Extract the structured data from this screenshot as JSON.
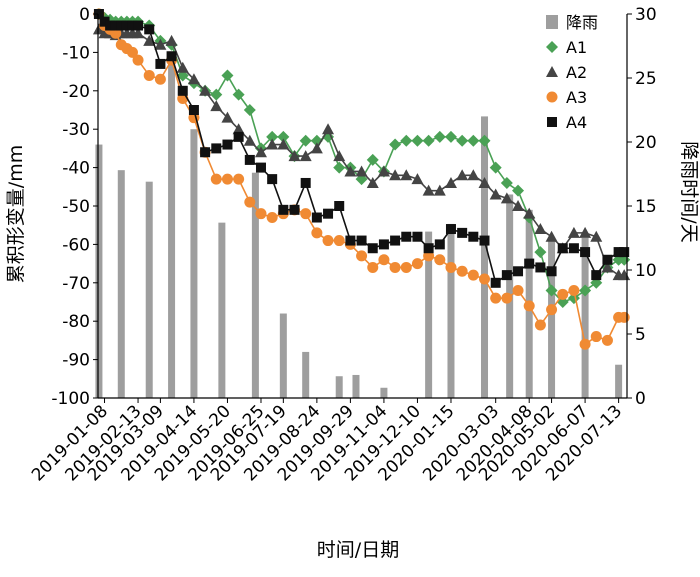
{
  "chart_data": {
    "type": "bar+line",
    "title": "",
    "xlabel": "时间/日期",
    "ylabel_left": "累积形变量/mm",
    "ylabel_right": "降雨时间/天",
    "ylim_left": [
      -100,
      0
    ],
    "ylim_right": [
      0,
      30
    ],
    "yticks_left": [
      0,
      -10,
      -20,
      -30,
      -40,
      -50,
      -60,
      -70,
      -80,
      -90,
      -100
    ],
    "yticks_right": [
      0,
      5,
      10,
      15,
      20,
      25,
      30
    ],
    "x_range": [
      "2019-01-01",
      "2020-07-22"
    ],
    "xtick_labels": [
      "2019-01-08",
      "2019-02-13",
      "2019-03-09",
      "2019-04-14",
      "2019-05-20",
      "2019-06-25",
      "2019-07-19",
      "2019-08-24",
      "2019-09-29",
      "2019-11-04",
      "2019-12-10",
      "2020-01-15",
      "2020-03-03",
      "2020-04-08",
      "2020-05-02",
      "2020-06-07",
      "2020-07-13"
    ],
    "grid": false,
    "legend_position": "top-right",
    "rain": {
      "name": "降雨",
      "color": "#9e9e9e",
      "dates": [
        "2019-01-02",
        "2019-01-26",
        "2019-02-25",
        "2019-03-21",
        "2019-04-14",
        "2019-05-14",
        "2019-06-19",
        "2019-07-19",
        "2019-08-12",
        "2019-09-17",
        "2019-10-05",
        "2019-11-04",
        "2019-12-22",
        "2020-01-15",
        "2020-02-20",
        "2020-03-18",
        "2020-04-08",
        "2020-05-02",
        "2020-06-07",
        "2020-07-13"
      ],
      "values": [
        19.8,
        17.8,
        16.9,
        26.6,
        21,
        13.7,
        17.6,
        6.6,
        3.6,
        1.7,
        1.8,
        0.8,
        13,
        13.6,
        22,
        15.9,
        14.7,
        12.5,
        12.5,
        2.6
      ]
    },
    "series": [
      {
        "name": "A1",
        "color": "#4aa155",
        "marker": "diamond",
        "dates": [
          "2019-01-02",
          "2019-01-08",
          "2019-01-14",
          "2019-01-20",
          "2019-01-26",
          "2019-02-01",
          "2019-02-07",
          "2019-02-13",
          "2019-02-25",
          "2019-03-09",
          "2019-03-21",
          "2019-04-02",
          "2019-04-14",
          "2019-04-26",
          "2019-05-08",
          "2019-05-20",
          "2019-06-01",
          "2019-06-13",
          "2019-06-25",
          "2019-07-07",
          "2019-07-19",
          "2019-07-31",
          "2019-08-12",
          "2019-08-24",
          "2019-09-05",
          "2019-09-17",
          "2019-09-29",
          "2019-10-11",
          "2019-10-23",
          "2019-11-04",
          "2019-11-16",
          "2019-11-28",
          "2019-12-10",
          "2019-12-22",
          "2020-01-03",
          "2020-01-15",
          "2020-01-27",
          "2020-02-08",
          "2020-02-20",
          "2020-03-03",
          "2020-03-15",
          "2020-03-27",
          "2020-04-08",
          "2020-04-20",
          "2020-05-02",
          "2020-05-14",
          "2020-05-26",
          "2020-06-07",
          "2020-06-19",
          "2020-07-01",
          "2020-07-13",
          "2020-07-19"
        ],
        "values": [
          0,
          -1,
          -1.5,
          -2,
          -2,
          -2,
          -2,
          -2,
          -3,
          -7,
          -8,
          -16,
          -18,
          -20,
          -21,
          -16,
          -21,
          -25,
          -35,
          -32,
          -32,
          -37,
          -33,
          -33,
          -32,
          -40,
          -40,
          -43,
          -38,
          -41,
          -34,
          -33,
          -33,
          -33,
          -32,
          -32,
          -33,
          -33,
          -33,
          -40,
          -44,
          -46,
          -53,
          -62,
          -72,
          -75,
          -74,
          -72,
          -70,
          -66,
          -64,
          -64
        ]
      },
      {
        "name": "A2",
        "color": "#444444",
        "marker": "triangle",
        "dates": [
          "2019-01-02",
          "2019-01-08",
          "2019-01-14",
          "2019-01-20",
          "2019-01-26",
          "2019-02-01",
          "2019-02-07",
          "2019-02-13",
          "2019-02-25",
          "2019-03-09",
          "2019-03-21",
          "2019-04-02",
          "2019-04-14",
          "2019-04-26",
          "2019-05-08",
          "2019-05-20",
          "2019-06-01",
          "2019-06-13",
          "2019-06-25",
          "2019-07-07",
          "2019-07-19",
          "2019-07-31",
          "2019-08-12",
          "2019-08-24",
          "2019-09-05",
          "2019-09-17",
          "2019-09-29",
          "2019-10-11",
          "2019-10-23",
          "2019-11-04",
          "2019-11-16",
          "2019-11-28",
          "2019-12-10",
          "2019-12-22",
          "2020-01-03",
          "2020-01-15",
          "2020-01-27",
          "2020-02-08",
          "2020-02-20",
          "2020-03-03",
          "2020-03-15",
          "2020-03-27",
          "2020-04-08",
          "2020-04-20",
          "2020-05-02",
          "2020-05-14",
          "2020-05-26",
          "2020-06-07",
          "2020-06-19",
          "2020-07-01",
          "2020-07-13",
          "2020-07-19"
        ],
        "values": [
          -4,
          -5,
          -5,
          -5.5,
          -5,
          -5,
          -5,
          -5,
          -7,
          -8,
          -7,
          -14,
          -17,
          -20,
          -24,
          -27,
          -30,
          -33,
          -36,
          -34,
          -34,
          -37,
          -37,
          -35,
          -30,
          -37,
          -41,
          -41,
          -44,
          -41,
          -42,
          -42,
          -43,
          -46,
          -46,
          -44,
          -42,
          -42,
          -44,
          -47,
          -48,
          -50,
          -52,
          -56,
          -58,
          -61,
          -57,
          -57,
          -58,
          -66,
          -68,
          -68
        ]
      },
      {
        "name": "A3",
        "color": "#f08a33",
        "marker": "circle",
        "dates": [
          "2019-01-02",
          "2019-01-08",
          "2019-01-14",
          "2019-01-20",
          "2019-01-26",
          "2019-02-01",
          "2019-02-07",
          "2019-02-13",
          "2019-02-25",
          "2019-03-09",
          "2019-03-21",
          "2019-04-02",
          "2019-04-14",
          "2019-04-26",
          "2019-05-08",
          "2019-05-20",
          "2019-06-01",
          "2019-06-13",
          "2019-06-25",
          "2019-07-07",
          "2019-07-19",
          "2019-07-31",
          "2019-08-12",
          "2019-08-24",
          "2019-09-05",
          "2019-09-17",
          "2019-09-29",
          "2019-10-11",
          "2019-10-23",
          "2019-11-04",
          "2019-11-16",
          "2019-11-28",
          "2019-12-10",
          "2019-12-22",
          "2020-01-03",
          "2020-01-15",
          "2020-01-27",
          "2020-02-08",
          "2020-02-20",
          "2020-03-03",
          "2020-03-15",
          "2020-03-27",
          "2020-04-08",
          "2020-04-20",
          "2020-05-02",
          "2020-05-14",
          "2020-05-26",
          "2020-06-07",
          "2020-06-19",
          "2020-07-01",
          "2020-07-13",
          "2020-07-19"
        ],
        "values": [
          0,
          -3,
          -4,
          -5,
          -8,
          -9,
          -10,
          -12,
          -16,
          -17,
          -12,
          -22,
          -27,
          -36,
          -43,
          -43,
          -43,
          -49,
          -52,
          -53,
          -52,
          -51,
          -52,
          -57,
          -59,
          -59,
          -60,
          -63,
          -66,
          -64,
          -66,
          -66,
          -65,
          -63,
          -64,
          -66,
          -67,
          -68,
          -69,
          -74,
          -74,
          -72,
          -76,
          -81,
          -77,
          -73,
          -72,
          -86,
          -84,
          -85,
          -79,
          -79
        ]
      },
      {
        "name": "A4",
        "color": "#111111",
        "marker": "square",
        "dates": [
          "2019-01-02",
          "2019-01-08",
          "2019-01-14",
          "2019-01-20",
          "2019-01-26",
          "2019-02-01",
          "2019-02-07",
          "2019-02-13",
          "2019-02-25",
          "2019-03-09",
          "2019-03-21",
          "2019-04-02",
          "2019-04-14",
          "2019-04-26",
          "2019-05-08",
          "2019-05-20",
          "2019-06-01",
          "2019-06-13",
          "2019-06-25",
          "2019-07-07",
          "2019-07-19",
          "2019-07-31",
          "2019-08-12",
          "2019-08-24",
          "2019-09-05",
          "2019-09-17",
          "2019-09-29",
          "2019-10-11",
          "2019-10-23",
          "2019-11-04",
          "2019-11-16",
          "2019-11-28",
          "2019-12-10",
          "2019-12-22",
          "2020-01-03",
          "2020-01-15",
          "2020-01-27",
          "2020-02-08",
          "2020-02-20",
          "2020-03-03",
          "2020-03-15",
          "2020-03-27",
          "2020-04-08",
          "2020-04-20",
          "2020-05-02",
          "2020-05-14",
          "2020-05-26",
          "2020-06-07",
          "2020-06-19",
          "2020-07-01",
          "2020-07-13",
          "2020-07-19"
        ],
        "values": [
          0,
          -2,
          -3,
          -3,
          -3,
          -3,
          -3,
          -3,
          -4,
          -13,
          -11,
          -20,
          -25,
          -36,
          -35,
          -34,
          -32,
          -38,
          -40,
          -43,
          -51,
          -51,
          -44,
          -53,
          -52,
          -50,
          -59,
          -59,
          -61,
          -60,
          -59,
          -58,
          -58,
          -61,
          -60,
          -56,
          -57,
          -58,
          -59,
          -70,
          -68,
          -67,
          -65,
          -66,
          -67,
          -61,
          -61,
          -62,
          -68,
          -64,
          -62,
          -62
        ]
      }
    ]
  }
}
